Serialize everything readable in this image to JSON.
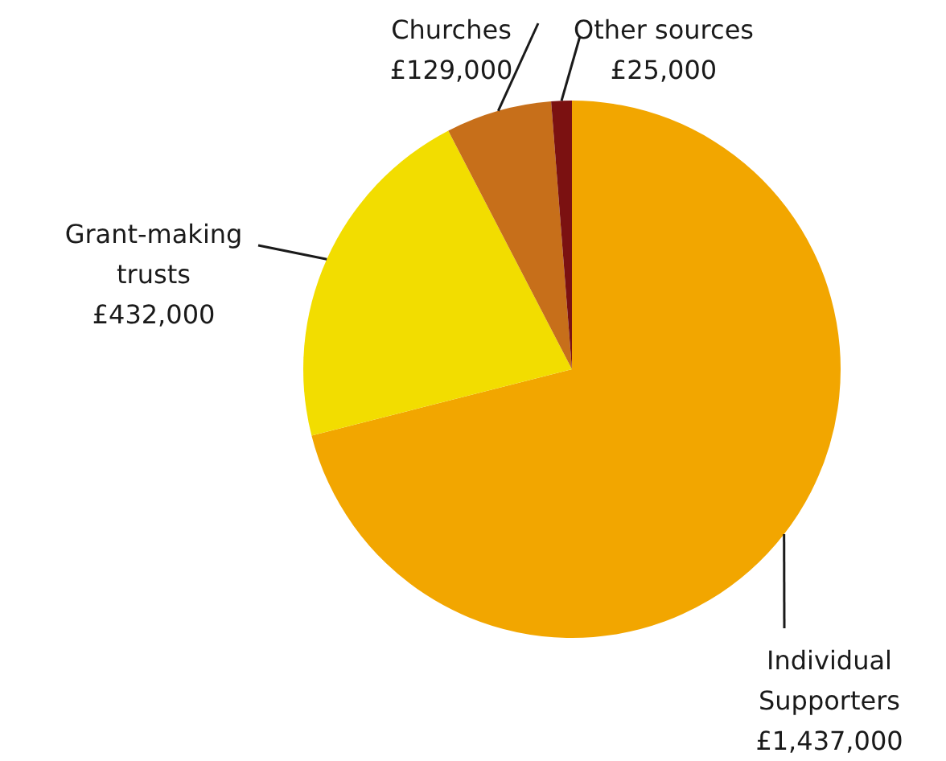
{
  "chart_data": {
    "type": "pie",
    "categories": [
      "Individual Supporters",
      "Grant-making trusts",
      "Churches",
      "Other sources"
    ],
    "values": [
      1437000,
      432000,
      129000,
      25000
    ],
    "value_labels": [
      "£1,437,000",
      "£432,000",
      "£129,000",
      "£25,000"
    ],
    "colors": [
      "#f2a600",
      "#f2dd00",
      "#c76f1a",
      "#7b1111"
    ]
  }
}
